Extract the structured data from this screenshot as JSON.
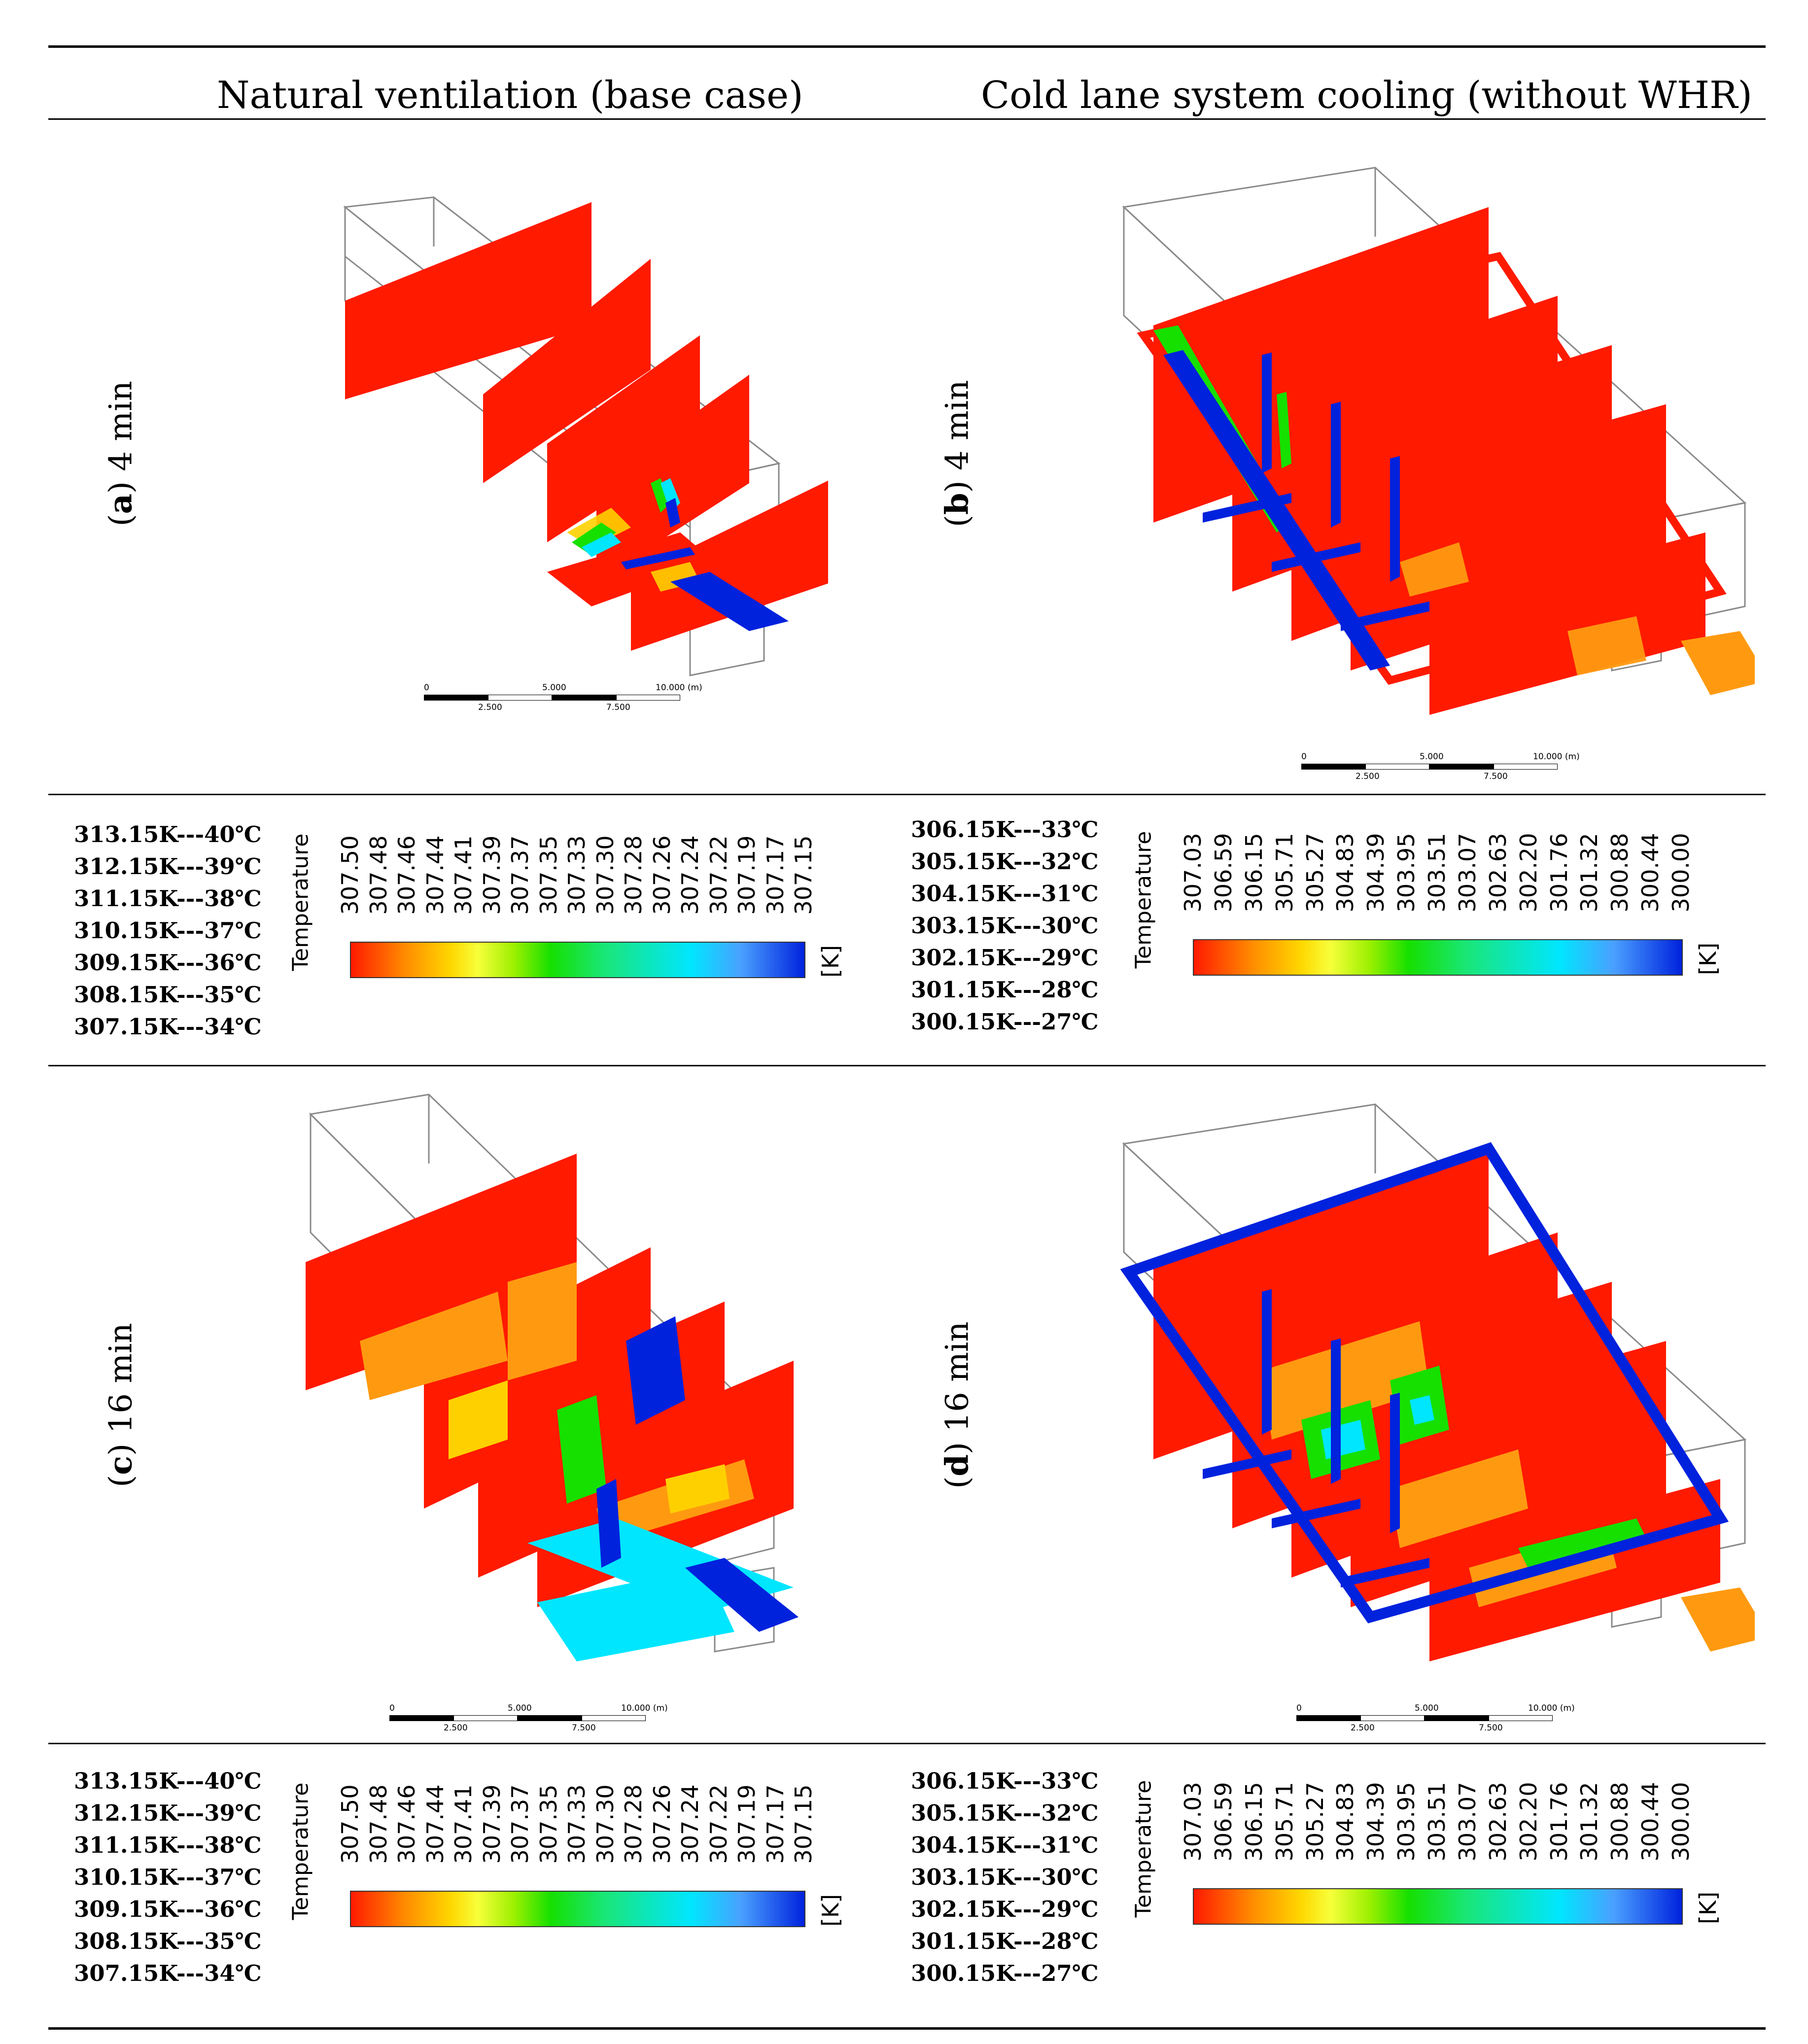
{
  "columns": {
    "left": "Natural ventilation (base case)",
    "right": "Cold lane system cooling (without WHR)"
  },
  "panels": [
    {
      "letter": "a",
      "label": "4 min"
    },
    {
      "letter": "b",
      "label": "4 min"
    },
    {
      "letter": "c",
      "label": "16 min"
    },
    {
      "letter": "d",
      "label": "16 min"
    }
  ],
  "legend_natural": {
    "title": "Temperature",
    "unit": "[K]",
    "ticks": [
      "307.50",
      "307.48",
      "307.46",
      "307.44",
      "307.41",
      "307.39",
      "307.37",
      "307.35",
      "307.33",
      "307.30",
      "307.28",
      "307.26",
      "307.24",
      "307.22",
      "307.19",
      "307.17",
      "307.15"
    ],
    "conversions": [
      "313.15K---40℃",
      "312.15K---39℃",
      "311.15K---38℃",
      "310.15K---37℃",
      "309.15K---36℃",
      "308.15K---35℃",
      "307.15K---34℃"
    ]
  },
  "legend_cold": {
    "title": "Temperature",
    "unit": "[K]",
    "ticks": [
      "307.03",
      "306.59",
      "306.15",
      "305.71",
      "305.27",
      "304.83",
      "304.39",
      "303.95",
      "303.51",
      "303.07",
      "302.63",
      "302.20",
      "301.76",
      "301.32",
      "300.88",
      "300.44",
      "300.00"
    ],
    "conversions": [
      "306.15K---33℃",
      "305.15K---32℃",
      "304.15K---31℃",
      "303.15K---30℃",
      "302.15K---29℃",
      "301.15K---28℃",
      "300.15K---27℃"
    ]
  },
  "scale_bar": {
    "top_labels": [
      "0",
      "5.000",
      "10.000 (m)"
    ],
    "bottom_labels": [
      "2.500",
      "7.500"
    ]
  },
  "colors": {
    "hot": "#ff1a00",
    "cold": "#0022dd",
    "mid": "#16e000",
    "cyan": "#00e6ff",
    "frame": "#8a8a8a",
    "orange": "#ff9a10"
  }
}
